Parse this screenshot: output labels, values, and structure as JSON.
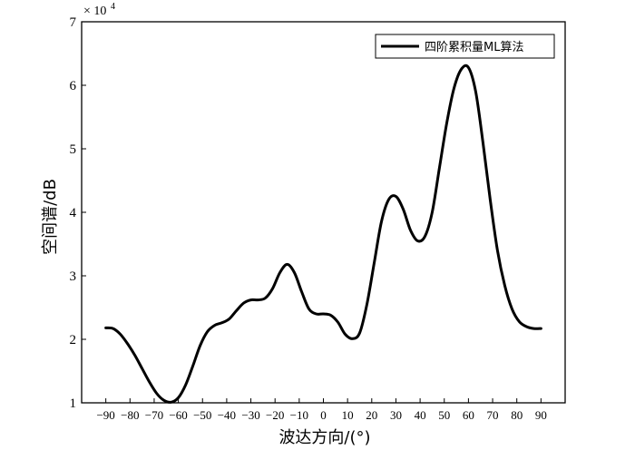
{
  "chart_data": {
    "type": "line",
    "title": "",
    "xlabel": "波达方向/(°)",
    "ylabel": "空间谱/dB",
    "y_multiplier_label": "× 10",
    "y_multiplier_exponent": "4",
    "xlim": [
      -100,
      100
    ],
    "ylim": [
      1,
      7
    ],
    "x_ticks": [
      -90,
      -80,
      -70,
      -60,
      -50,
      -40,
      -30,
      -20,
      -10,
      0,
      10,
      20,
      30,
      40,
      50,
      60,
      70,
      80,
      90
    ],
    "x_tick_labels": [
      "−90",
      "−80",
      "−70",
      "−60",
      "−50",
      "−40",
      "−30",
      "−20",
      "−10",
      "0",
      "10",
      "20",
      "30",
      "40",
      "50",
      "60",
      "70",
      "80",
      "90"
    ],
    "y_ticks": [
      1,
      2,
      3,
      4,
      5,
      6,
      7
    ],
    "y_tick_labels": [
      "1",
      "2",
      "3",
      "4",
      "5",
      "6",
      "7"
    ],
    "grid": false,
    "legend_position": "top-right",
    "series": [
      {
        "name": "四阶累积量ML算法",
        "color": "#000000",
        "x": [
          -90,
          -87,
          -84,
          -81,
          -78,
          -75,
          -72,
          -69,
          -66,
          -63,
          -60,
          -57,
          -54,
          -51,
          -48,
          -45,
          -42,
          -39,
          -36,
          -33,
          -30,
          -27,
          -24,
          -21,
          -18,
          -15,
          -12,
          -9,
          -6,
          -3,
          0,
          3,
          6,
          9,
          12,
          15,
          18,
          21,
          24,
          27,
          30,
          33,
          36,
          39,
          42,
          45,
          48,
          51,
          54,
          57,
          60,
          63,
          66,
          69,
          72,
          75,
          78,
          81,
          84,
          87,
          90
        ],
        "y": [
          2.18,
          2.17,
          2.08,
          1.93,
          1.75,
          1.54,
          1.33,
          1.15,
          1.04,
          1.01,
          1.08,
          1.28,
          1.58,
          1.9,
          2.12,
          2.22,
          2.26,
          2.32,
          2.45,
          2.57,
          2.62,
          2.62,
          2.65,
          2.8,
          3.05,
          3.18,
          3.05,
          2.75,
          2.48,
          2.4,
          2.4,
          2.38,
          2.27,
          2.08,
          2.01,
          2.1,
          2.55,
          3.2,
          3.85,
          4.2,
          4.25,
          4.05,
          3.72,
          3.55,
          3.62,
          4.0,
          4.7,
          5.4,
          5.95,
          6.25,
          6.28,
          5.9,
          5.1,
          4.2,
          3.4,
          2.85,
          2.48,
          2.28,
          2.2,
          2.17,
          2.17
        ]
      }
    ]
  }
}
